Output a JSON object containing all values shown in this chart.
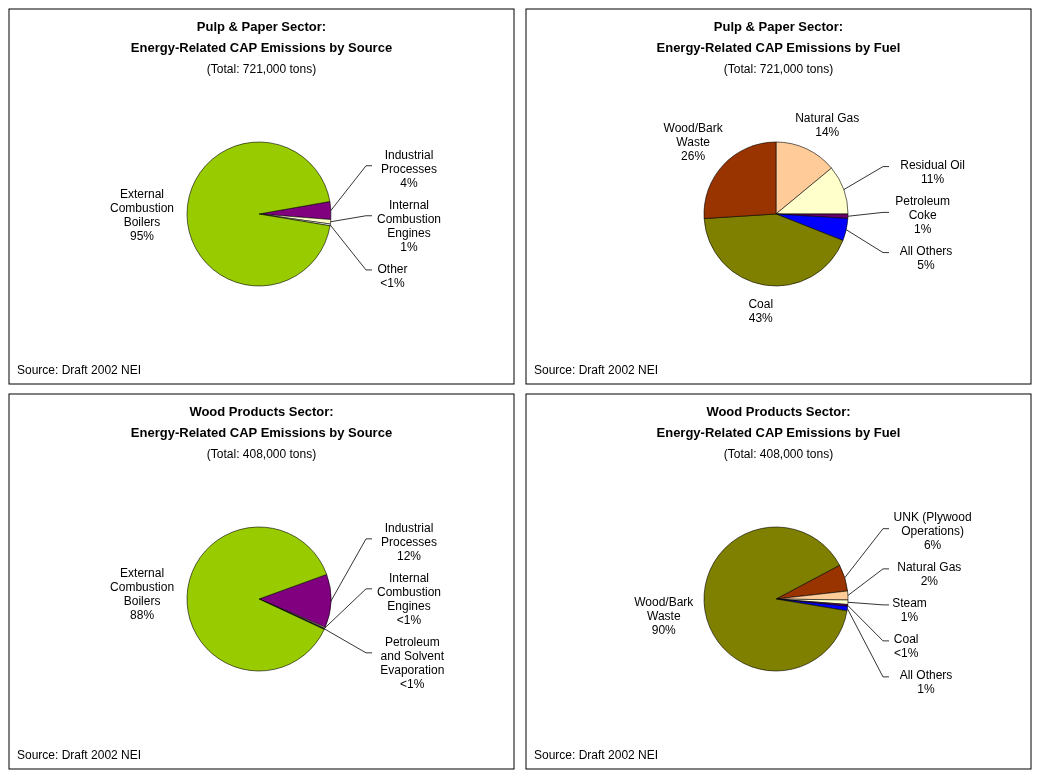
{
  "chart_data": [
    {
      "type": "pie",
      "title": "Pulp & Paper Sector:\nEnergy-Related CAP Emissions by Source",
      "subtitle": "(Total: 721,000 tons)",
      "categories": [
        "Industrial Processes",
        "Internal Combustion Engines",
        "Other",
        "External Combustion Boilers"
      ],
      "values": [
        4,
        1,
        0.4,
        94.6
      ],
      "colors": [
        "#800080",
        "#ffffcc",
        "#ffffff",
        "#99cc00"
      ],
      "value_labels": [
        "4%",
        "1%",
        "<1%",
        "95%"
      ],
      "annotations": [
        "Source: Draft 2002 NEI"
      ]
    },
    {
      "type": "pie",
      "title": "Pulp & Paper Sector:\nEnergy-Related CAP Emissions by Fuel",
      "subtitle": "(Total: 721,000 tons)",
      "categories": [
        "Natural Gas",
        "Residual Oil",
        "Petroleum Coke",
        "All Others",
        "Coal",
        "Wood/Bark Waste"
      ],
      "values": [
        14,
        11,
        1,
        5,
        43,
        26
      ],
      "colors": [
        "#ffcc99",
        "#ffffcc",
        "#660066",
        "#0000ff",
        "#808000",
        "#993300"
      ],
      "value_labels": [
        "14%",
        "11%",
        "1%",
        "5%",
        "43%",
        "26%"
      ],
      "annotations": [
        "Source: Draft 2002 NEI"
      ]
    },
    {
      "type": "pie",
      "title": "Wood Products Sector:\nEnergy-Related CAP Emissions by Source",
      "subtitle": "(Total: 408,000 tons)",
      "categories": [
        "Industrial Processes",
        "Internal Combustion Engines",
        "Petroleum and Solvent Evaporation",
        "External Combustion Boilers"
      ],
      "values": [
        12,
        0.25,
        0.25,
        87.5
      ],
      "colors": [
        "#800080",
        "#ffffcc",
        "#333333",
        "#99cc00"
      ],
      "value_labels": [
        "12%",
        "<1%",
        "<1%",
        "88%"
      ],
      "annotations": [
        "Source: Draft 2002 NEI"
      ]
    },
    {
      "type": "pie",
      "title": "Wood Products Sector:\nEnergy-Related CAP Emissions by Fuel",
      "subtitle": "(Total: 408,000 tons)",
      "categories": [
        "UNK (Plywood Operations)",
        "Natural Gas",
        "Steam",
        "Coal",
        "All Others",
        "Wood/Bark Waste"
      ],
      "values": [
        6,
        2,
        1,
        0.4,
        1,
        89.6
      ],
      "colors": [
        "#993300",
        "#ffcc99",
        "#ffffcc",
        "#660066",
        "#0000ff",
        "#808000"
      ],
      "value_labels": [
        "6%",
        "2%",
        "1%",
        "<1%",
        "1%",
        "90%"
      ],
      "annotations": [
        "Source: Draft 2002 NEI"
      ]
    }
  ]
}
